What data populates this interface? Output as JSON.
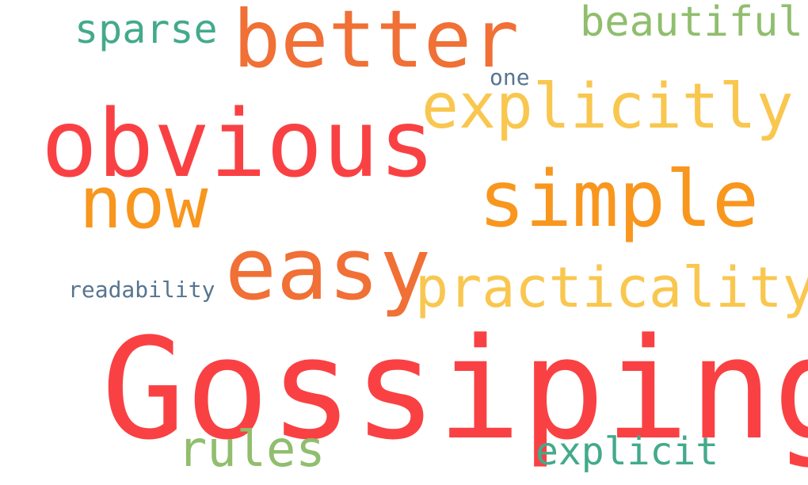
{
  "words": {
    "gossiping": {
      "text": "Gossiping",
      "color": "#f94144"
    },
    "obvious": {
      "text": "obvious",
      "color": "#f94144"
    },
    "better": {
      "text": "better",
      "color": "#f07036"
    },
    "easy": {
      "text": "easy",
      "color": "#f07036"
    },
    "simple": {
      "text": "simple",
      "color": "#f8961e"
    },
    "now": {
      "text": "now",
      "color": "#f8961e"
    },
    "explicitly": {
      "text": "explicitly",
      "color": "#f9c74f"
    },
    "practicality": {
      "text": "practicality",
      "color": "#f9c74f"
    },
    "rules": {
      "text": "rules",
      "color": "#90be6d"
    },
    "beautiful": {
      "text": "beautiful",
      "color": "#90be6d"
    },
    "sparse": {
      "text": "sparse",
      "color": "#43aa8b"
    },
    "explicit": {
      "text": "explicit",
      "color": "#43aa8b"
    },
    "readability": {
      "text": "readability",
      "color": "#577590"
    },
    "one": {
      "text": "one",
      "color": "#577590"
    }
  }
}
